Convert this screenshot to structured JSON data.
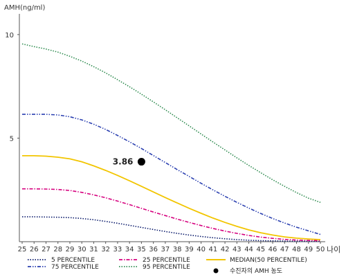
{
  "chart_data": {
    "type": "line",
    "ylabel": "AMH(ng/ml)",
    "xlabel": "나이",
    "xlim": [
      25,
      50
    ],
    "ylim": [
      0,
      11
    ],
    "yticks": [
      5,
      10
    ],
    "x": [
      25,
      26,
      27,
      28,
      29,
      30,
      31,
      32,
      33,
      34,
      35,
      36,
      37,
      38,
      39,
      40,
      41,
      42,
      43,
      44,
      45,
      46,
      47,
      48,
      49,
      50
    ],
    "series": [
      {
        "name": "5 PERCENTILE",
        "color": "#0a1a6b",
        "style": "dotted",
        "values": [
          1.2,
          1.2,
          1.19,
          1.18,
          1.16,
          1.12,
          1.06,
          0.98,
          0.89,
          0.79,
          0.69,
          0.59,
          0.49,
          0.4,
          0.32,
          0.25,
          0.19,
          0.14,
          0.1,
          0.07,
          0.05,
          0.04,
          0.03,
          0.02,
          0.02,
          0.02
        ]
      },
      {
        "name": "25 PERCENTILE",
        "color": "#d6007e",
        "style": "dashdot",
        "values": [
          2.55,
          2.55,
          2.54,
          2.52,
          2.47,
          2.38,
          2.26,
          2.12,
          1.96,
          1.79,
          1.61,
          1.43,
          1.26,
          1.09,
          0.93,
          0.78,
          0.64,
          0.51,
          0.4,
          0.3,
          0.22,
          0.16,
          0.11,
          0.08,
          0.06,
          0.05
        ]
      },
      {
        "name": "MEDIAN(50 PERCENTILE)",
        "color": "#f2c500",
        "style": "solid",
        "values": [
          4.15,
          4.15,
          4.13,
          4.08,
          4.0,
          3.86,
          3.66,
          3.44,
          3.2,
          2.94,
          2.67,
          2.4,
          2.13,
          1.87,
          1.61,
          1.37,
          1.14,
          0.93,
          0.74,
          0.57,
          0.43,
          0.32,
          0.23,
          0.17,
          0.13,
          0.1
        ]
      },
      {
        "name": "75 PERCENTILE",
        "color": "#2a3fb0",
        "style": "dashdotdot",
        "values": [
          6.15,
          6.15,
          6.15,
          6.12,
          6.03,
          5.88,
          5.67,
          5.42,
          5.13,
          4.82,
          4.5,
          4.16,
          3.82,
          3.48,
          3.15,
          2.82,
          2.5,
          2.19,
          1.9,
          1.62,
          1.36,
          1.12,
          0.9,
          0.7,
          0.52,
          0.35
        ]
      },
      {
        "name": "95 PERCENTILE",
        "color": "#2e8b4f",
        "style": "dotted",
        "values": [
          9.55,
          9.42,
          9.3,
          9.15,
          8.95,
          8.72,
          8.45,
          8.15,
          7.82,
          7.48,
          7.12,
          6.75,
          6.37,
          5.98,
          5.59,
          5.2,
          4.81,
          4.43,
          4.05,
          3.68,
          3.33,
          2.99,
          2.67,
          2.37,
          2.1,
          1.9
        ]
      }
    ],
    "point": {
      "x": 35,
      "y": 3.86,
      "label": "3.86",
      "legend": "수진자의 AMH 농도",
      "color": "#000000"
    },
    "legend_position": "bottom"
  }
}
